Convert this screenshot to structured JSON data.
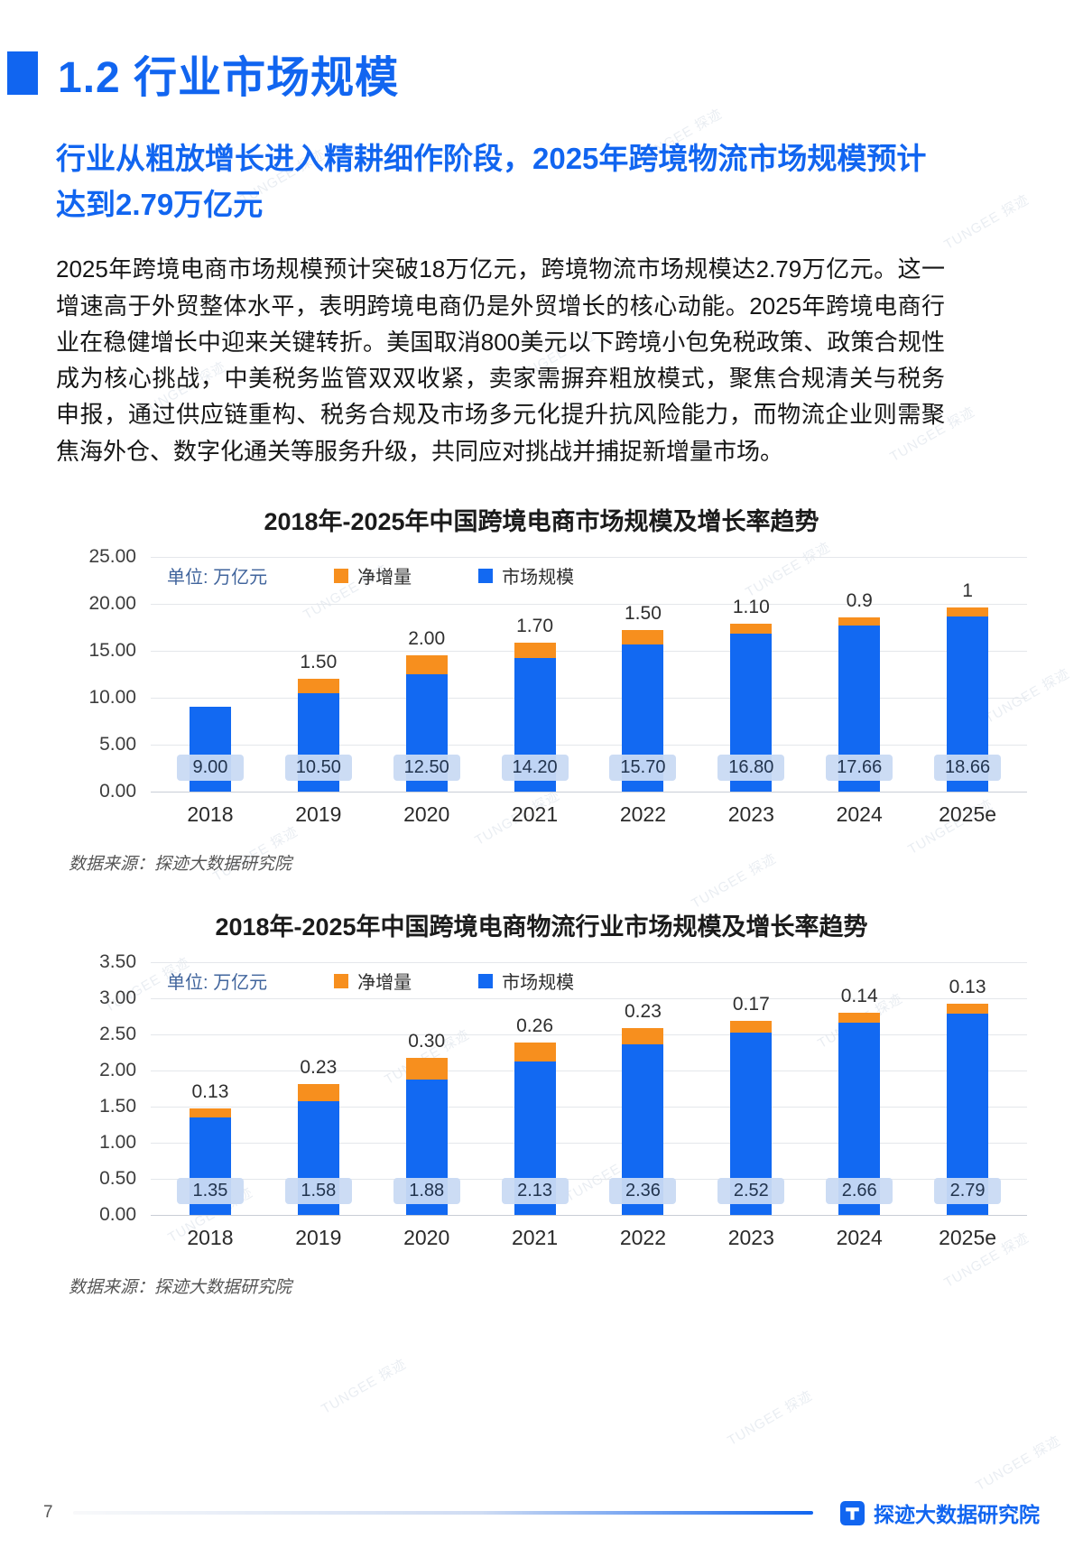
{
  "page": {
    "section_title": "1.2 行业市场规模",
    "subtitle": "行业从粗放增长进入精耕细作阶段，2025年跨境物流市场规模预计达到2.79万亿元",
    "body": "2025年跨境电商市场规模预计突破18万亿元，跨境物流市场规模达2.79万亿元。这一增速高于外贸整体水平，表明跨境电商仍是外贸增长的核心动能。2025年跨境电商行业在稳健增长中迎来关键转折。美国取消800美元以下跨境小包免税政策、政策合规性成为核心挑战，中美税务监管双双收紧，卖家需摒弃粗放模式，聚焦合规清关与税务申报，通过供应链重构、税务合规及市场多元化提升抗风险能力，而物流企业则需聚焦海外仓、数字化通关等服务升级，共同应对挑战并捕捉新增量市场。",
    "watermark_text": "TUNGEE 探迹",
    "footer": {
      "page_number": "7",
      "brand": "探迹大数据研究院"
    }
  },
  "colors": {
    "accent_blue": "#1165f0",
    "bar_blue": "#1269f2",
    "bar_orange": "#f78f1e",
    "label_pill_bg": "#c9daf3"
  },
  "chart_data": [
    {
      "type": "bar",
      "stacked": true,
      "title": "2018年-2025年中国跨境电商市场规模及增长率趋势",
      "unit_label": "单位: 万亿元",
      "categories": [
        "2018",
        "2019",
        "2020",
        "2021",
        "2022",
        "2023",
        "2024",
        "2025e"
      ],
      "series": [
        {
          "name": "市场规模",
          "color": "#1269f2",
          "values": [
            9.0,
            10.5,
            12.5,
            14.2,
            15.7,
            16.8,
            17.66,
            18.66
          ]
        },
        {
          "name": "净增量",
          "color": "#f78f1e",
          "values": [
            0,
            1.5,
            2.0,
            1.7,
            1.5,
            1.1,
            0.9,
            1
          ]
        }
      ],
      "bar_value_labels": [
        "9.00",
        "10.50",
        "12.50",
        "14.20",
        "15.70",
        "16.80",
        "17.66",
        "18.66"
      ],
      "increment_labels": [
        "",
        "1.50",
        "2.00",
        "1.70",
        "1.50",
        "1.10",
        "0.9",
        "1"
      ],
      "legend": [
        {
          "label": "净增量",
          "color": "#f78f1e"
        },
        {
          "label": "市场规模",
          "color": "#1269f2"
        }
      ],
      "ylim": [
        0,
        25
      ],
      "yticks": [
        "25.00",
        "20.00",
        "15.00",
        "10.00",
        "5.00",
        "0.00"
      ],
      "grid": true,
      "legend_position": "top",
      "source": "数据来源：探迹大数据研究院"
    },
    {
      "type": "bar",
      "stacked": true,
      "title": "2018年-2025年中国跨境电商物流行业市场规模及增长率趋势",
      "unit_label": "单位: 万亿元",
      "categories": [
        "2018",
        "2019",
        "2020",
        "2021",
        "2022",
        "2023",
        "2024",
        "2025e"
      ],
      "series": [
        {
          "name": "市场规模",
          "color": "#1269f2",
          "values": [
            1.35,
            1.58,
            1.88,
            2.13,
            2.36,
            2.52,
            2.66,
            2.79
          ]
        },
        {
          "name": "净增量",
          "color": "#f78f1e",
          "values": [
            0.13,
            0.23,
            0.3,
            0.26,
            0.23,
            0.17,
            0.14,
            0.13
          ]
        }
      ],
      "bar_value_labels": [
        "1.35",
        "1.58",
        "1.88",
        "2.13",
        "2.36",
        "2.52",
        "2.66",
        "2.79"
      ],
      "increment_labels": [
        "0.13",
        "0.23",
        "0.30",
        "0.26",
        "0.23",
        "0.17",
        "0.14",
        "0.13"
      ],
      "legend": [
        {
          "label": "净增量",
          "color": "#f78f1e"
        },
        {
          "label": "市场规模",
          "color": "#1269f2"
        }
      ],
      "ylim": [
        0,
        3.5
      ],
      "yticks": [
        "3.50",
        "3.00",
        "2.50",
        "2.00",
        "1.50",
        "1.00",
        "0.50",
        "0.00"
      ],
      "grid": true,
      "legend_position": "top",
      "source": "数据来源：探迹大数据研究院"
    }
  ]
}
